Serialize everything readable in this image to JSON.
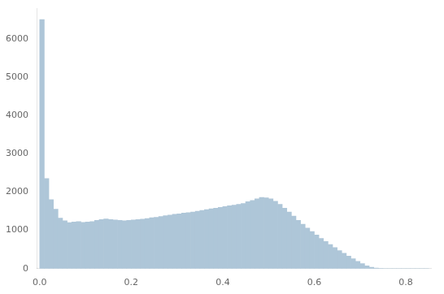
{
  "chart_data": {
    "type": "histogram",
    "bins": [
      0,
      0.01,
      0.02,
      0.03,
      0.04,
      0.05,
      0.06,
      0.07,
      0.08,
      0.09,
      0.1,
      0.11,
      0.12,
      0.13,
      0.14,
      0.15,
      0.16,
      0.17,
      0.18,
      0.19,
      0.2,
      0.21,
      0.22,
      0.23,
      0.24,
      0.25,
      0.26,
      0.27,
      0.28,
      0.29,
      0.3,
      0.31,
      0.32,
      0.33,
      0.34,
      0.35,
      0.36,
      0.37,
      0.38,
      0.39,
      0.4,
      0.41,
      0.42,
      0.43,
      0.44,
      0.45,
      0.46,
      0.47,
      0.48,
      0.49,
      0.5,
      0.51,
      0.52,
      0.53,
      0.54,
      0.55,
      0.56,
      0.57,
      0.58,
      0.59,
      0.6,
      0.61,
      0.62,
      0.63,
      0.64,
      0.65,
      0.66,
      0.67,
      0.68,
      0.69,
      0.7,
      0.71,
      0.72,
      0.73,
      0.74,
      0.75,
      0.76,
      0.77,
      0.78,
      0.79,
      0.8,
      0.81,
      0.82,
      0.83,
      0.84,
      0.85
    ],
    "values": [
      6500,
      2350,
      1800,
      1550,
      1320,
      1250,
      1200,
      1220,
      1230,
      1210,
      1220,
      1230,
      1260,
      1280,
      1300,
      1280,
      1270,
      1260,
      1250,
      1260,
      1270,
      1280,
      1290,
      1310,
      1330,
      1340,
      1360,
      1380,
      1400,
      1420,
      1430,
      1450,
      1460,
      1480,
      1500,
      1520,
      1540,
      1560,
      1580,
      1600,
      1620,
      1640,
      1660,
      1680,
      1700,
      1750,
      1780,
      1820,
      1860,
      1850,
      1820,
      1760,
      1680,
      1580,
      1480,
      1370,
      1260,
      1160,
      1060,
      970,
      880,
      790,
      710,
      630,
      550,
      470,
      400,
      330,
      260,
      190,
      130,
      75,
      38,
      14,
      5,
      2,
      0,
      0,
      0,
      0,
      0,
      0,
      0,
      0,
      0
    ],
    "color": "#aec6d8",
    "xlim": [
      -0.005,
      0.855
    ],
    "ylim": [
      0,
      6800
    ],
    "xticks": [
      {
        "value": 0,
        "label": "0.0"
      },
      0.2,
      0.4,
      0.6,
      0.8
    ],
    "yticks": [
      0,
      1000,
      2000,
      3000,
      4000,
      5000,
      6000
    ],
    "grid": false
  }
}
